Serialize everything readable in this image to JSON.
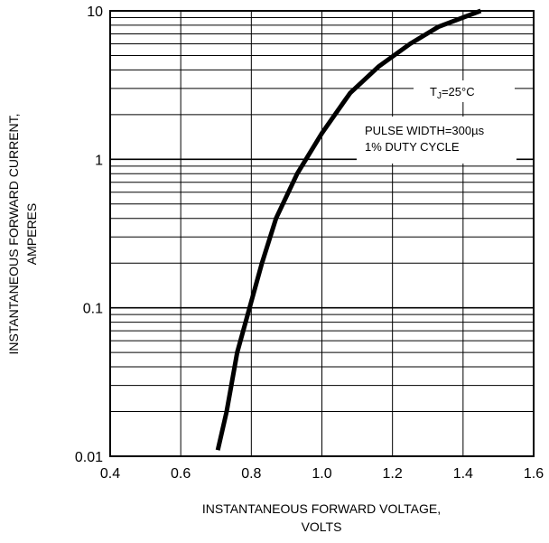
{
  "chart_data": {
    "type": "line",
    "title": "",
    "xlabel": [
      "INSTANTANEOUS FORWARD VOLTAGE,",
      "VOLTS"
    ],
    "ylabel": [
      "INSTANTANEOUS FORWARD CURRENT,",
      "AMPERES"
    ],
    "xlim": [
      0.4,
      1.6
    ],
    "ylim": [
      0.01,
      10
    ],
    "yscale": "log",
    "grid": true,
    "xticks": [
      0.4,
      0.6,
      0.8,
      1.0,
      1.2,
      1.4,
      1.6
    ],
    "xtick_labels": [
      "0.4",
      "0.6",
      "0.8",
      "1.0",
      "1.2",
      "1.4",
      "1.6"
    ],
    "yticks": [
      0.01,
      0.1,
      1,
      10
    ],
    "ytick_labels": [
      "0.01",
      "0.1",
      "1",
      "10"
    ],
    "series": [
      {
        "name": "",
        "x": [
          0.705,
          0.73,
          0.76,
          0.795,
          0.83,
          0.87,
          0.93,
          1.0,
          1.08,
          1.16,
          1.25,
          1.33,
          1.45
        ],
        "y": [
          0.011,
          0.02,
          0.05,
          0.1,
          0.2,
          0.4,
          0.8,
          1.5,
          2.8,
          4.2,
          6.0,
          7.8,
          10.0
        ]
      }
    ],
    "annotations": [
      {
        "id": "tj",
        "prefix": "T",
        "sub": "J",
        "suffix": "=25°C"
      },
      {
        "id": "pulse",
        "lines": [
          "PULSE WIDTH=300µs",
          "1% DUTY CYCLE"
        ]
      }
    ]
  }
}
